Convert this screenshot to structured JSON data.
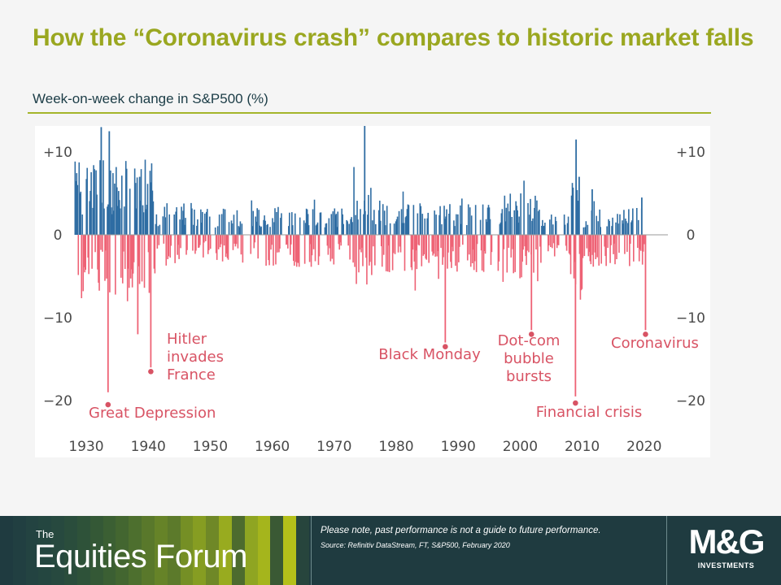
{
  "slide": {
    "title": "How the “Coronavirus crash” compares to historic market falls",
    "subtitle": "Week-on-week change in S&P500 (%)"
  },
  "colors": {
    "title": "#9aa720",
    "positive_bars": "#2f6da3",
    "negative_bars": "#ee6275",
    "annotation": "#d85364",
    "footer_bg": "#1f3b40"
  },
  "chart_data": {
    "type": "bar",
    "title": "",
    "xlabel": "",
    "ylabel": "",
    "x_range": [
      1928,
      2020
    ],
    "ylim": [
      -20,
      14
    ],
    "yticks": [
      {
        "value": 10,
        "label": "+10"
      },
      {
        "value": 0,
        "label": "0"
      },
      {
        "value": -10,
        "label": "−10"
      },
      {
        "value": -20,
        "label": "−20"
      }
    ],
    "xticks": [
      1930,
      1940,
      1950,
      1960,
      1970,
      1980,
      1990,
      2000,
      2010,
      2020
    ],
    "grid": false,
    "legend": "none",
    "series": [
      {
        "values_by_period": [
          {
            "start": 1928,
            "end": 1941,
            "typical_up": 7,
            "typical_down": -6
          },
          {
            "start": 1941,
            "end": 1947,
            "typical_up": 3,
            "typical_down": -3
          },
          {
            "start": 1947,
            "end": 1955,
            "typical_up": 2.5,
            "typical_down": -2.5
          },
          {
            "start": 1955,
            "end": 1973,
            "typical_up": 2.5,
            "typical_down": -3
          },
          {
            "start": 1973,
            "end": 1976,
            "typical_up": 4.5,
            "typical_down": -5
          },
          {
            "start": 1976,
            "end": 1997,
            "typical_up": 3,
            "typical_down": -3.5
          },
          {
            "start": 1997,
            "end": 2003,
            "typical_up": 4,
            "typical_down": -4.5
          },
          {
            "start": 2003,
            "end": 2008,
            "typical_up": 2,
            "typical_down": -2
          },
          {
            "start": 2008,
            "end": 2010,
            "typical_up": 6,
            "typical_down": -7
          },
          {
            "start": 2010,
            "end": 2020,
            "typical_up": 2.5,
            "typical_down": -3
          }
        ],
        "peaks": [
          {
            "x": 1932.3,
            "y": 13
          },
          {
            "x": 1933.6,
            "y": 12.5
          },
          {
            "x": 1938.5,
            "y": 7
          },
          {
            "x": 1974.8,
            "y": 13.5
          },
          {
            "x": 2008.9,
            "y": 11.5
          },
          {
            "x": 2009.4,
            "y": 7
          },
          {
            "x": 2011.5,
            "y": 5.5
          },
          {
            "x": 2019.5,
            "y": 4.5
          },
          {
            "x": 1933.4,
            "y": -19
          },
          {
            "x": 1938.2,
            "y": -12
          },
          {
            "x": 1940.3,
            "y": -16
          },
          {
            "x": 1987.8,
            "y": -13
          },
          {
            "x": 2001.7,
            "y": -11.5
          },
          {
            "x": 2008.8,
            "y": -19.5
          },
          {
            "x": 2020.1,
            "y": -11.5
          }
        ]
      }
    ],
    "annotations": [
      {
        "lines": [
          "Great Depression"
        ],
        "x": 1933.4,
        "y": -20.5
      },
      {
        "lines": [
          "Hitler",
          "invades",
          "France"
        ],
        "x": 1940.3,
        "y": -16.5
      },
      {
        "lines": [
          "Black Monday"
        ],
        "x": 1987.8,
        "y": -13.5
      },
      {
        "lines": [
          "Dot-com",
          "bubble",
          "bursts"
        ],
        "x": 2001.7,
        "y": -12
      },
      {
        "lines": [
          "Financial crisis"
        ],
        "x": 2008.8,
        "y": -20.3
      },
      {
        "lines": [
          "Coronavirus"
        ],
        "x": 2020.1,
        "y": -12
      }
    ]
  },
  "footer": {
    "brand_small": "The",
    "brand_large": "Equities Forum",
    "disclaimer": "Please note, past performance is not a guide to future performance.",
    "source": "Source: Refinitiv DataStream, FT, S&P500, February 2020",
    "logo_mark": "M&G",
    "logo_sub": "INVESTMENTS"
  }
}
